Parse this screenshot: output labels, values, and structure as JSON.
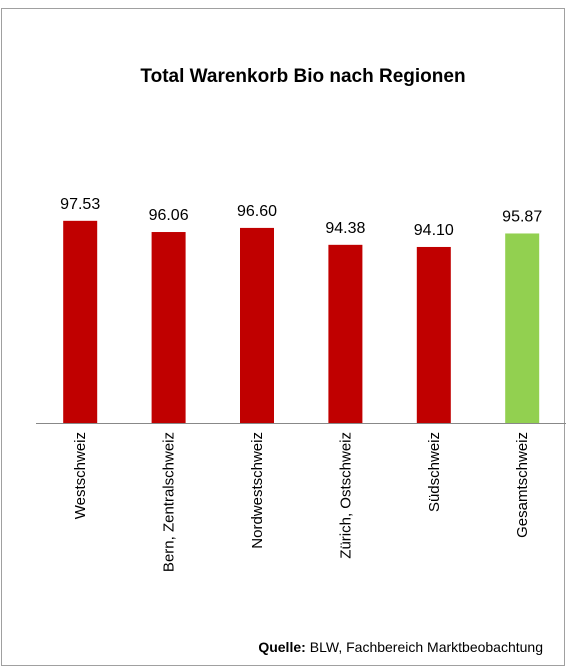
{
  "chart_data": {
    "type": "bar",
    "title": "Total Warenkorb  Bio nach Regionen",
    "categories": [
      "Westschweiz",
      "Bern, Zentralschweiz",
      "Nordwestschweiz",
      "Zürich, Ostschweiz",
      "Südschweiz",
      "Gesamtschweiz"
    ],
    "values": [
      97.53,
      96.06,
      96.6,
      94.38,
      94.1,
      95.87
    ],
    "value_labels": [
      "97.53",
      "96.06",
      "96.60",
      "94.38",
      "94.10",
      "95.87"
    ],
    "colors": [
      "#c00000",
      "#c00000",
      "#c00000",
      "#c00000",
      "#c00000",
      "#92d050"
    ],
    "ylim": [
      71,
      100
    ],
    "source_label": "Quelle:",
    "source_text": "BLW, Fachbereich Marktbeobachtung"
  }
}
